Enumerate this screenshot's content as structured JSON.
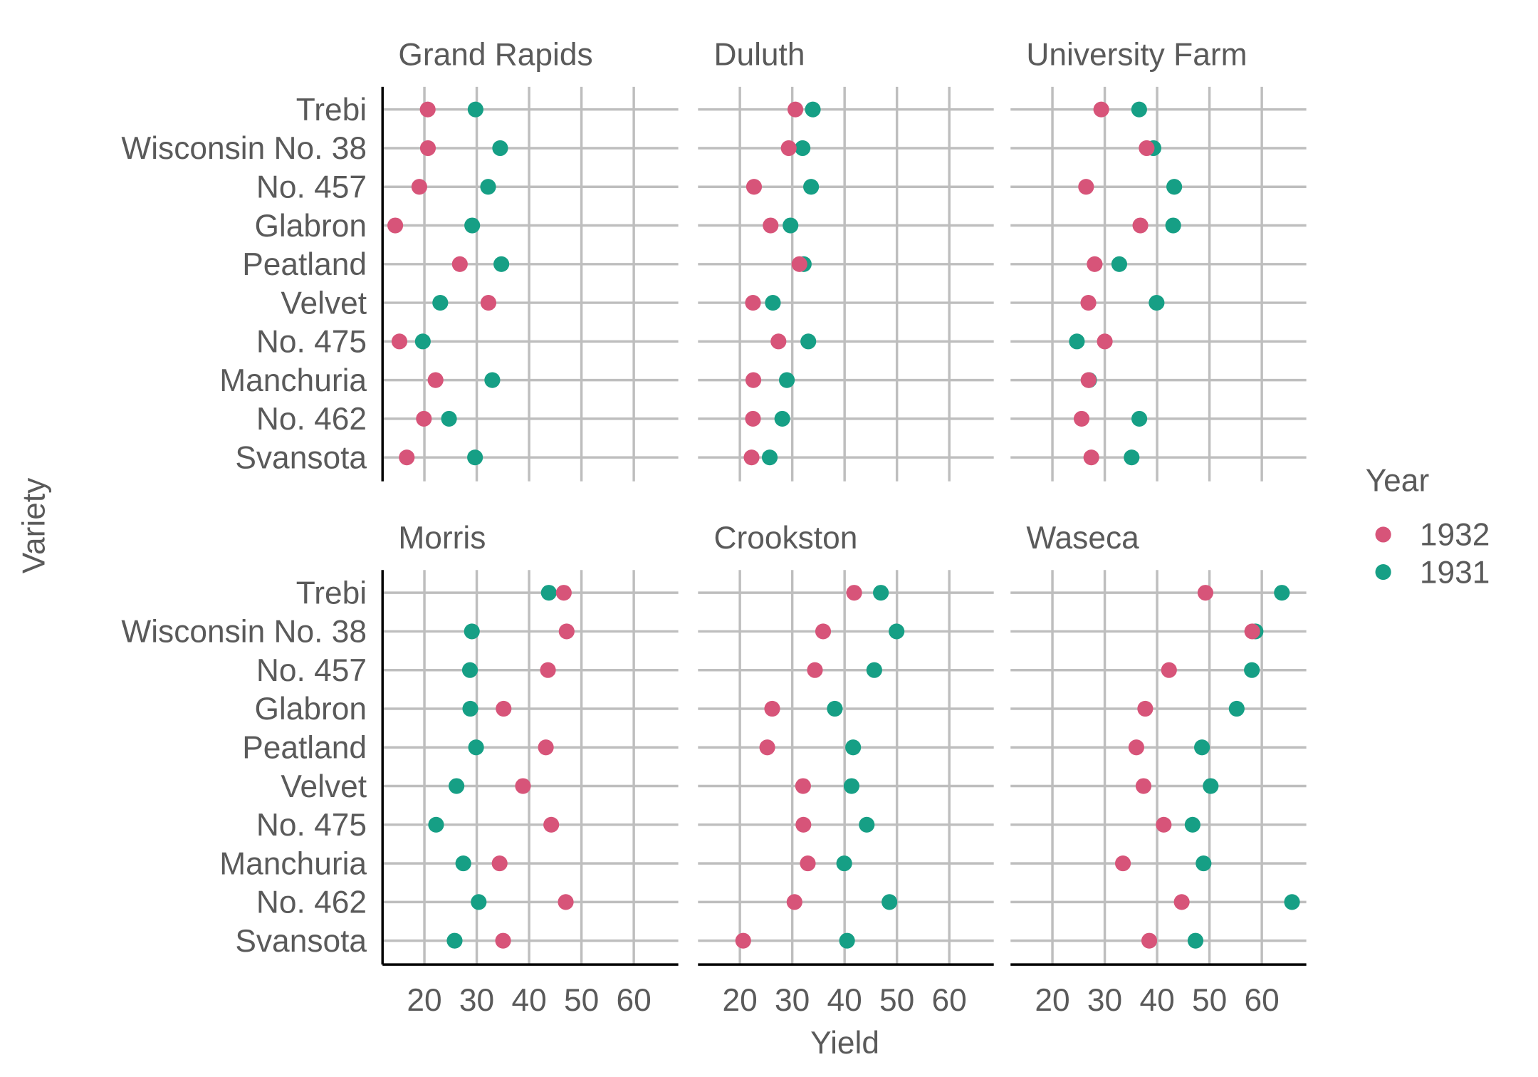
{
  "chart_data": {
    "type": "scatter",
    "facet_layout": "2 rows x 3 columns",
    "xlabel": "Yield",
    "ylabel": "Variety",
    "xlim": [
      12,
      68.5
    ],
    "xticks": [
      20,
      30,
      40,
      50,
      60
    ],
    "grid": true,
    "legend": {
      "title": "Year",
      "position": "right",
      "entries": [
        {
          "label": "1932",
          "color": "#d75479"
        },
        {
          "label": "1931",
          "color": "#169f85"
        }
      ]
    },
    "varieties": [
      "Trebi",
      "Wisconsin No. 38",
      "No. 457",
      "Glabron",
      "Peatland",
      "Velvet",
      "No. 475",
      "Manchuria",
      "No. 462",
      "Svansota"
    ],
    "panels": [
      {
        "site": "Grand Rapids",
        "y1932": [
          20.63,
          20.67,
          19.03,
          14.43,
          26.77,
          32.23,
          15.23,
          22.13,
          19.9,
          16.63
        ],
        "y1931": [
          29.77,
          34.47,
          32.17,
          29.13,
          34.7,
          23.03,
          19.7,
          32.97,
          24.7,
          29.67
        ]
      },
      {
        "site": "Duluth",
        "y1932": [
          30.6,
          29.33,
          22.7,
          25.87,
          31.37,
          22.5,
          27.37,
          22.57,
          22.5,
          22.23
        ],
        "y1931": [
          33.93,
          31.97,
          33.6,
          29.67,
          32.2,
          26.3,
          33.07,
          28.97,
          28.1,
          25.7
        ]
      },
      {
        "site": "University Farm",
        "y1932": [
          29.33,
          38.0,
          26.43,
          36.8,
          28.07,
          26.87,
          30.0,
          26.9,
          25.57,
          27.43
        ],
        "y1931": [
          36.57,
          39.3,
          43.27,
          43.07,
          32.77,
          39.9,
          24.67,
          27.0,
          36.6,
          35.13
        ]
      },
      {
        "site": "Morris",
        "y1932": [
          46.63,
          47.17,
          43.6,
          35.13,
          43.2,
          38.83,
          44.23,
          34.37,
          47.0,
          35.03
        ],
        "y1931": [
          43.77,
          29.07,
          28.7,
          28.77,
          29.87,
          26.13,
          22.23,
          27.43,
          30.37,
          25.77
        ]
      },
      {
        "site": "Crookston",
        "y1932": [
          41.83,
          35.9,
          34.33,
          26.17,
          25.23,
          32.07,
          32.13,
          32.97,
          30.43,
          20.63
        ],
        "y1931": [
          46.93,
          49.93,
          45.67,
          38.13,
          41.63,
          41.33,
          44.23,
          39.93,
          48.57,
          40.47
        ]
      },
      {
        "site": "Waseca",
        "y1932": [
          49.23,
          58.17,
          42.27,
          37.73,
          36.03,
          37.4,
          41.26,
          33.47,
          44.7,
          38.5
        ],
        "y1931": [
          63.83,
          58.8,
          58.1,
          55.2,
          48.57,
          50.23,
          46.77,
          48.87,
          65.77,
          47.33
        ]
      }
    ]
  }
}
